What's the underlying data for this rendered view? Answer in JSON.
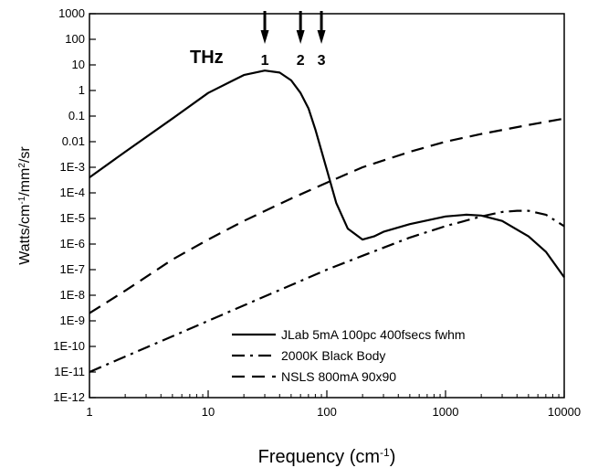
{
  "chart_data": {
    "type": "line",
    "title": "",
    "xlabel": "Frequency (cm",
    "xlabel_sup": "-1",
    "xlabel_end": ")",
    "ylabel_parts": [
      "Watts/cm",
      "-1",
      "/mm",
      "2",
      "/sr"
    ],
    "x_scale": "log",
    "y_scale": "log",
    "xlim": [
      1,
      10000
    ],
    "ylim": [
      1e-12,
      1000
    ],
    "grid": false,
    "legend_position": "bottom-right",
    "x_ticks": [
      {
        "value": 1,
        "label": "1"
      },
      {
        "value": 10,
        "label": "10"
      },
      {
        "value": 100,
        "label": "100"
      },
      {
        "value": 1000,
        "label": "1000"
      },
      {
        "value": 10000,
        "label": "10000"
      }
    ],
    "y_ticks": [
      {
        "value": 1000,
        "label": "1000"
      },
      {
        "value": 100,
        "label": "100"
      },
      {
        "value": 10,
        "label": "10"
      },
      {
        "value": 1,
        "label": "1"
      },
      {
        "value": 0.1,
        "label": "0.1"
      },
      {
        "value": 0.01,
        "label": "0.01"
      },
      {
        "value": 0.001,
        "label": "1E-3"
      },
      {
        "value": 0.0001,
        "label": "1E-4"
      },
      {
        "value": 1e-05,
        "label": "1E-5"
      },
      {
        "value": 1e-06,
        "label": "1E-6"
      },
      {
        "value": 1e-07,
        "label": "1E-7"
      },
      {
        "value": 1e-08,
        "label": "1E-8"
      },
      {
        "value": 1e-09,
        "label": "1E-9"
      },
      {
        "value": 1e-10,
        "label": "1E-10"
      },
      {
        "value": 1e-11,
        "label": "1E-11"
      },
      {
        "value": 1e-12,
        "label": "1E-12"
      }
    ],
    "series": [
      {
        "name": "JLab 5mA 100pc 400fsecs fwhm",
        "dash": "solid",
        "x": [
          1,
          2,
          5,
          10,
          20,
          30,
          40,
          50,
          60,
          70,
          80,
          100,
          120,
          150,
          200,
          250,
          300,
          500,
          1000,
          1500,
          2000,
          3000,
          5000,
          7000,
          10000
        ],
        "y": [
          0.0004,
          0.004,
          0.08,
          0.8,
          4,
          6,
          5,
          2.5,
          0.8,
          0.2,
          0.03,
          0.0008,
          4e-05,
          4e-06,
          1.5e-06,
          2e-06,
          3e-06,
          6e-06,
          1.2e-05,
          1.4e-05,
          1.3e-05,
          8e-06,
          2e-06,
          5e-07,
          5e-08
        ]
      },
      {
        "name": "2000K Black Body",
        "dash": "dashdot",
        "x": [
          1,
          2,
          5,
          10,
          20,
          50,
          100,
          200,
          500,
          1000,
          2000,
          3000,
          4000,
          5000,
          7000,
          10000
        ],
        "y": [
          1e-11,
          4e-11,
          2.5e-10,
          1e-09,
          4e-09,
          2.5e-08,
          1e-07,
          3.5e-07,
          1.8e-06,
          5e-06,
          1.2e-05,
          1.8e-05,
          2e-05,
          2e-05,
          1.4e-05,
          5e-06
        ]
      },
      {
        "name": "NSLS 800mA 90x90",
        "dash": "dashed",
        "x": [
          1,
          2,
          5,
          10,
          20,
          50,
          100,
          200,
          500,
          1000,
          2000,
          5000,
          10000
        ],
        "y": [
          2e-09,
          1.5e-08,
          2.5e-07,
          1.5e-06,
          8e-06,
          6e-05,
          0.00025,
          0.001,
          0.004,
          0.01,
          0.02,
          0.045,
          0.08
        ]
      }
    ],
    "annotations": {
      "thz_label": "THz",
      "arrows": [
        {
          "x": 30,
          "label": "1"
        },
        {
          "x": 60,
          "label": "2"
        },
        {
          "x": 90,
          "label": "3"
        }
      ]
    }
  }
}
